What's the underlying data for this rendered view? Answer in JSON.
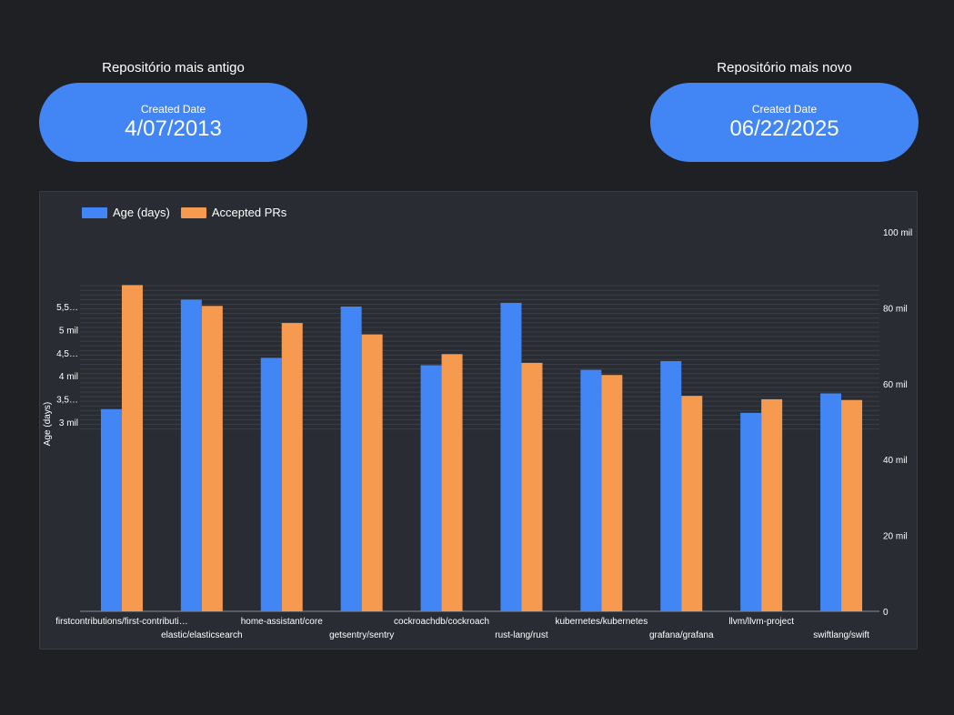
{
  "kpis": {
    "oldest": {
      "title": "Repositório mais antigo",
      "label": "Created Date",
      "value": "4/07/2013"
    },
    "newest": {
      "title": "Repositório mais novo",
      "label": "Created Date",
      "value": "06/22/2025"
    }
  },
  "colors": {
    "age": "#4285f4",
    "prs": "#f59a4f"
  },
  "chart_data": {
    "type": "bar",
    "categories": [
      "firstcontributions/first-contributi…",
      "elastic/elasticsearch",
      "home-assistant/core",
      "getsentry/sentry",
      "cockroachdb/cockroach",
      "rust-lang/rust",
      "kubernetes/kubernetes",
      "grafana/grafana",
      "llvm/llvm-project",
      "swiftlang/swift"
    ],
    "series": [
      {
        "name": "Age (days)",
        "axis": "left",
        "values": [
          3280,
          5650,
          4390,
          5500,
          4230,
          5580,
          4130,
          4320,
          3200,
          3620
        ]
      },
      {
        "name": "Accepted PRs",
        "axis": "right",
        "values": [
          86000,
          80500,
          76000,
          73000,
          67800,
          65500,
          62300,
          56800,
          55900,
          55700
        ]
      }
    ],
    "ylabel": "Age (days)",
    "y_left": {
      "ticks": [
        3000,
        3500,
        4000,
        4500,
        5000,
        5500
      ],
      "tick_labels": [
        "3 mil",
        "3,5…",
        "4 mil",
        "4,5…",
        "5 mil",
        "5,5…"
      ]
    },
    "y_right": {
      "ylim": [
        0,
        100000
      ],
      "ticks": [
        0,
        20000,
        40000,
        60000,
        80000,
        100000
      ],
      "tick_labels": [
        "0",
        "20 mil",
        "40 mil",
        "60 mil",
        "80 mil",
        "100 mil"
      ]
    },
    "grid": true,
    "legend_position": "top-left"
  }
}
